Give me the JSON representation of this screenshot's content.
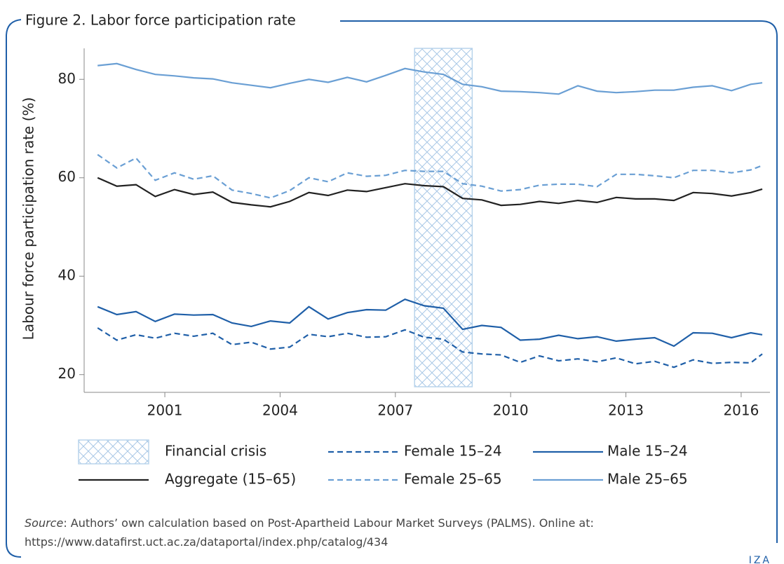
{
  "title": "Figure 2. Labor force participation rate",
  "source_label": "Source",
  "source_text": ": Authors’ own calculation based on Post-Apartheid Labour Market Surveys (PALMS). Online at: https://www.datafirst.uct.ac.za/dataportal/index.php/catalog/434",
  "logo": "IZA",
  "chart_data": {
    "type": "line",
    "ylabel": "Labour force participation rate (%)",
    "xlim": [
      1998.9,
      2016.75
    ],
    "ylim": [
      16.4,
      86.3
    ],
    "xticks": [
      2001,
      2004,
      2007,
      2010,
      2013,
      2016
    ],
    "yticks": [
      20,
      40,
      60,
      80
    ],
    "grid": false,
    "shaded_regions": [
      {
        "label": "Financial crisis",
        "xlim": [
          2007.5,
          2009.0
        ],
        "color": "#b8d4ec"
      }
    ],
    "x": [
      1999.25,
      1999.75,
      2000.25,
      2000.75,
      2001.25,
      2001.75,
      2002.25,
      2002.75,
      2003.25,
      2003.75,
      2004.25,
      2004.75,
      2005.25,
      2005.75,
      2006.25,
      2006.75,
      2007.25,
      2007.75,
      2008.25,
      2008.75,
      2009.25,
      2009.75,
      2010.25,
      2010.75,
      2011.25,
      2011.75,
      2012.25,
      2012.75,
      2013.25,
      2013.75,
      2014.25,
      2014.75,
      2015.25,
      2015.75,
      2016.25,
      2016.55
    ],
    "series": [
      {
        "name": "Aggregate (15–65)",
        "color": "#222222",
        "linestyle": "solid",
        "values": [
          60,
          58.3,
          58.6,
          56.2,
          57.6,
          56.6,
          57.1,
          55,
          54.5,
          54.1,
          55.2,
          57,
          56.4,
          57.5,
          57.2,
          58,
          58.8,
          58.4,
          58.2,
          55.8,
          55.5,
          54.4,
          54.6,
          55.2,
          54.8,
          55.4,
          55,
          56,
          55.7,
          55.7,
          55.4,
          57,
          56.8,
          56.3,
          57,
          57.7
        ]
      },
      {
        "name": "Female 15–24",
        "color": "#1f5fa8",
        "linestyle": "dashed",
        "values": [
          29.5,
          27,
          28.1,
          27.4,
          28.4,
          27.8,
          28.4,
          26.1,
          26.6,
          25.2,
          25.6,
          28.2,
          27.7,
          28.4,
          27.6,
          27.7,
          29.1,
          27.6,
          27.2,
          24.6,
          24.2,
          24,
          22.5,
          23.8,
          22.8,
          23.2,
          22.6,
          23.4,
          22.2,
          22.7,
          21.5,
          23,
          22.3,
          22.5,
          22.4,
          24.2
        ]
      },
      {
        "name": "Female 25–65",
        "color": "#6a9fd4",
        "linestyle": "dashed",
        "values": [
          64.7,
          62,
          64,
          59.5,
          61,
          59.7,
          60.4,
          57.5,
          56.8,
          55.9,
          57.4,
          60,
          59.2,
          61,
          60.3,
          60.5,
          61.5,
          61.3,
          61.3,
          58.8,
          58.3,
          57.3,
          57.6,
          58.5,
          58.7,
          58.7,
          58.2,
          60.7,
          60.7,
          60.4,
          60,
          61.5,
          61.5,
          61,
          61.6,
          62.5
        ]
      },
      {
        "name": "Male 15–24",
        "color": "#1f5fa8",
        "linestyle": "solid",
        "values": [
          33.8,
          32.2,
          32.8,
          30.8,
          32.3,
          32.1,
          32.2,
          30.5,
          29.8,
          30.9,
          30.5,
          33.8,
          31.3,
          32.6,
          33.2,
          33.1,
          35.3,
          34,
          33.5,
          29.2,
          30,
          29.6,
          27,
          27.2,
          28,
          27.3,
          27.7,
          26.8,
          27.2,
          27.5,
          25.8,
          28.5,
          28.4,
          27.5,
          28.5,
          28.1
        ]
      },
      {
        "name": "Male 25–65",
        "color": "#6a9fd4",
        "linestyle": "solid",
        "values": [
          82.8,
          83.2,
          82,
          81,
          80.7,
          80.3,
          80.1,
          79.3,
          78.8,
          78.3,
          79.2,
          80,
          79.4,
          80.4,
          79.5,
          80.8,
          82.2,
          81.5,
          81,
          79,
          78.5,
          77.6,
          77.5,
          77.3,
          77,
          78.7,
          77.6,
          77.3,
          77.5,
          77.8,
          77.8,
          78.4,
          78.7,
          77.7,
          79,
          79.3
        ]
      }
    ]
  }
}
